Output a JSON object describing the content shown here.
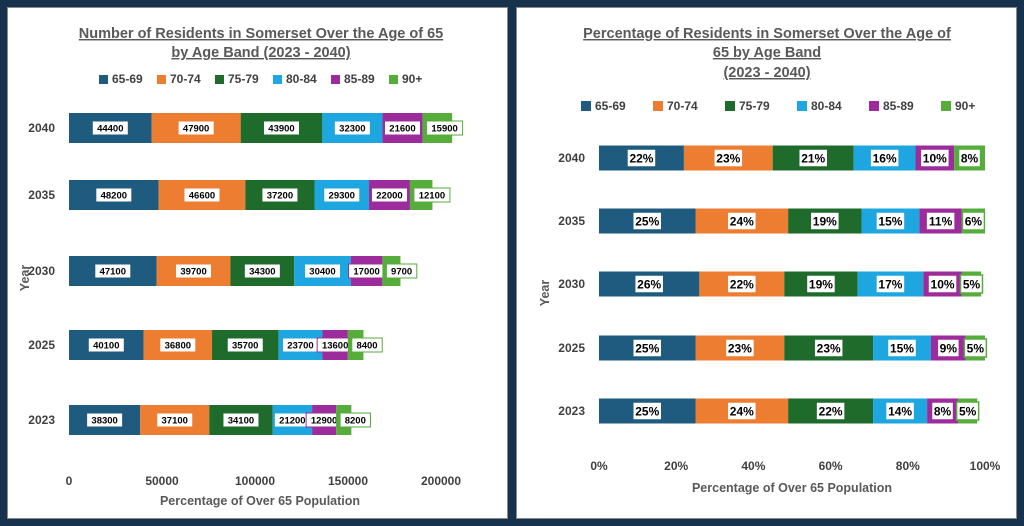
{
  "colors": {
    "65-69": "#1f5b7e",
    "70-74": "#ed7d31",
    "75-79": "#1e6b2c",
    "80-84": "#1ea6e0",
    "85-89": "#9c2c9c",
    "90+": "#56ad3c",
    "frame": "#17324d"
  },
  "chart_data": [
    {
      "type": "bar",
      "orientation": "horizontal",
      "stacked": true,
      "title": "Number of Residents in Somerset Over the Age of 65 by Age Band (2023 - 2040)",
      "title_lines": [
        "Number of Residents in Somerset Over the Age of 65",
        "by Age Band (2023 - 2040)"
      ],
      "xlabel": "Percentage of Over 65 Population",
      "ylabel": "Year",
      "xlim": [
        0,
        200000
      ],
      "xticks": [
        "0",
        "50000",
        "100000",
        "150000",
        "200000"
      ],
      "legend_position": "top",
      "categories": [
        "2040",
        "2035",
        "2030",
        "2025",
        "2023"
      ],
      "series": [
        {
          "name": "65-69",
          "values": [
            44400,
            48200,
            47100,
            40100,
            38300
          ]
        },
        {
          "name": "70-74",
          "values": [
            47900,
            46600,
            39700,
            36800,
            37100
          ]
        },
        {
          "name": "75-79",
          "values": [
            43900,
            37200,
            34300,
            35700,
            34100
          ]
        },
        {
          "name": "80-84",
          "values": [
            32300,
            29300,
            30400,
            23700,
            21200
          ]
        },
        {
          "name": "85-89",
          "values": [
            21600,
            22000,
            17000,
            13600,
            12900
          ]
        },
        {
          "name": "90+",
          "values": [
            15900,
            12100,
            9700,
            8400,
            8200
          ]
        }
      ]
    },
    {
      "type": "bar",
      "orientation": "horizontal",
      "stacked": true,
      "percent": true,
      "title": "Percentage of Residents in Somerset Over the Age of 65 by Age Band (2023 - 2040)",
      "title_lines": [
        "Percentage of Residents in Somerset Over the Age of",
        "65 by Age Band",
        "(2023 - 2040)"
      ],
      "xlabel": "Percentage of Over 65 Population",
      "ylabel": "Year",
      "xlim": [
        0,
        100
      ],
      "xticks": [
        "0%",
        "20%",
        "40%",
        "60%",
        "80%",
        "100%"
      ],
      "legend_position": "top",
      "categories": [
        "2040",
        "2035",
        "2030",
        "2025",
        "2023"
      ],
      "series": [
        {
          "name": "65-69",
          "values": [
            22,
            25,
            26,
            25,
            25
          ]
        },
        {
          "name": "70-74",
          "values": [
            23,
            24,
            22,
            23,
            24
          ]
        },
        {
          "name": "75-79",
          "values": [
            21,
            19,
            19,
            23,
            22
          ]
        },
        {
          "name": "80-84",
          "values": [
            16,
            15,
            17,
            15,
            14
          ]
        },
        {
          "name": "85-89",
          "values": [
            10,
            11,
            10,
            9,
            8
          ]
        },
        {
          "name": "90+",
          "values": [
            8,
            6,
            5,
            5,
            5
          ]
        }
      ]
    }
  ]
}
